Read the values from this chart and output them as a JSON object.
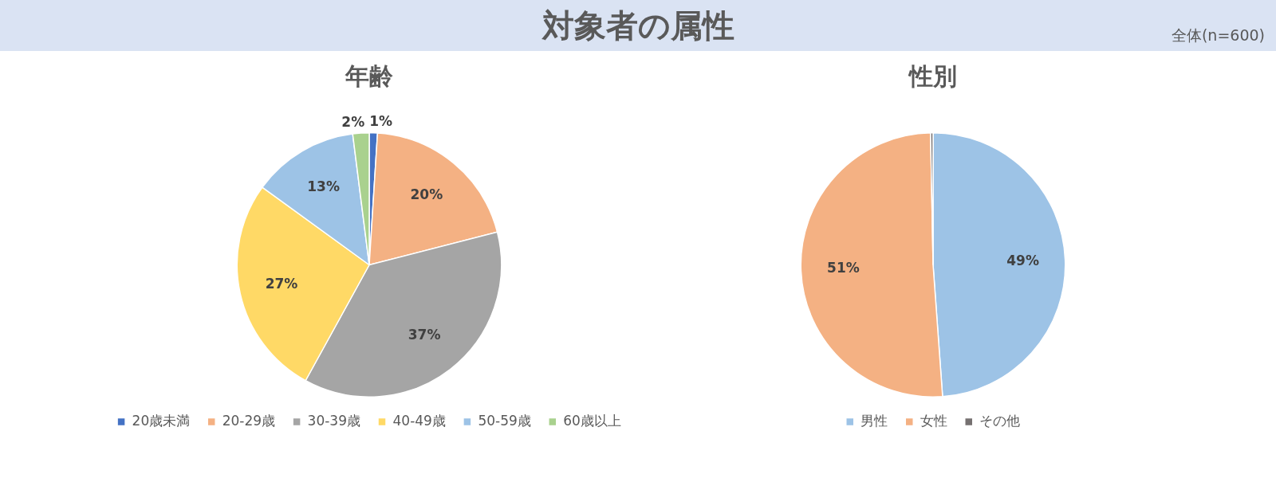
{
  "chart_data": [
    {
      "type": "other",
      "title": "対象者の属性",
      "annotations": [
        "全体(n=600)"
      ]
    },
    {
      "type": "pie",
      "title": "年齢",
      "categories": [
        "20歳未満",
        "20-29歳",
        "30-39歳",
        "40-49歳",
        "50-59歳",
        "60歳以上"
      ],
      "values": [
        1,
        20,
        37,
        27,
        13,
        2
      ],
      "colors": [
        "#4472c4",
        "#f4b183",
        "#a5a5a5",
        "#ffd966",
        "#9dc3e6",
        "#a9d18e"
      ],
      "value_labels": [
        "1%",
        "20%",
        "37%",
        "27%",
        "13%",
        "2%"
      ],
      "legend": "bottom"
    },
    {
      "type": "pie",
      "title": "性別",
      "categories": [
        "男性",
        "女性",
        "その他"
      ],
      "values": [
        49,
        51,
        0.3
      ],
      "colors": [
        "#9dc3e6",
        "#f4b183",
        "#767171"
      ],
      "value_labels": [
        "49%",
        "51%",
        null
      ],
      "legend": "bottom"
    }
  ]
}
